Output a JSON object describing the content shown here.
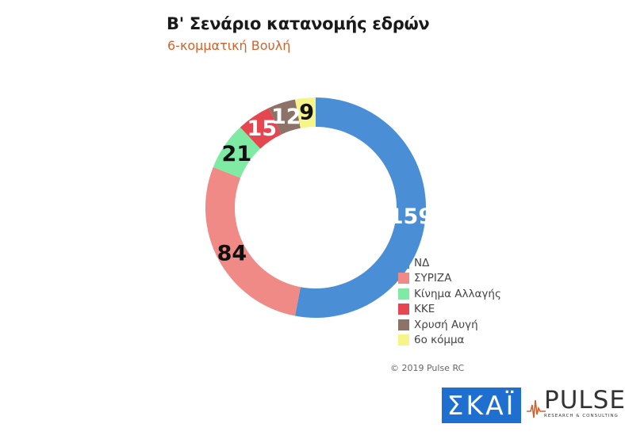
{
  "title": "B' Σενάριο κατανομής εδρών",
  "subtitle": "6-κομματική Βουλή",
  "chart_data": {
    "type": "pie",
    "donut": true,
    "categories": [
      "ΝΔ",
      "ΣΥΡΙΖΑ",
      "Κίνημα Αλλαγής",
      "ΚΚΕ",
      "Χρυσή Αυγή",
      "6ο κόμμα"
    ],
    "values": [
      159,
      84,
      21,
      15,
      12,
      9
    ],
    "colors": [
      "#4a8fd5",
      "#f08a86",
      "#7eeaa4",
      "#e54750",
      "#8c7268",
      "#f5f58a"
    ],
    "label_colors": [
      "#ffffff",
      "#111111",
      "#111111",
      "#ffffff",
      "#ffffff",
      "#111111"
    ],
    "legend_position": "bottom-right"
  },
  "copyright": "© 2019 Pulse RC",
  "logos": {
    "skai": "ΣΚΑΪ",
    "pulse": "PULSE",
    "pulse_sub": "RESEARCH & CONSULTING"
  }
}
